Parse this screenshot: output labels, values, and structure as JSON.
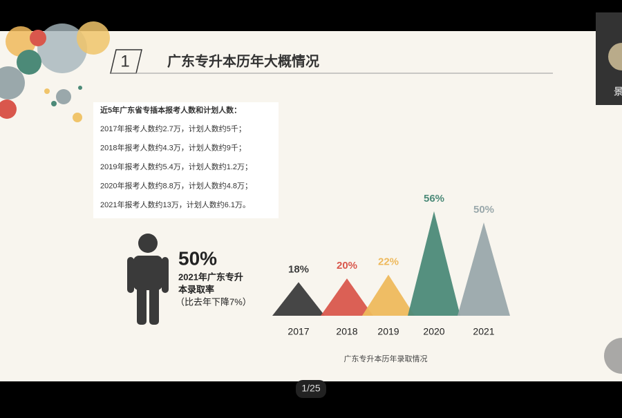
{
  "slide": {
    "number": "1",
    "title": "广东专升本历年大概情况",
    "info": {
      "heading": "近5年广东省专插本报考人数和计划人数：",
      "lines": [
        "2017年报考人数约2.7万，计划人数约5千；",
        "2018年报考人数约4.3万，计划人数约9千；",
        "2019年报考人数约5.4万，计划人数约1.2万；",
        "2020年报考人数约8.8万，计划人数约4.8万；",
        "2021年报考人数约13万，计划人数约6.1万。"
      ]
    },
    "stat": {
      "value": "50%",
      "caption": [
        "2021年广东专升",
        "本录取率",
        "（比去年下降7%）"
      ]
    },
    "chart": {
      "type": "triangle",
      "caption": "广东专升本历年录取情况",
      "categories": [
        "2017",
        "2018",
        "2019",
        "2020",
        "2021"
      ],
      "values": [
        18,
        20,
        22,
        56,
        50
      ],
      "value_labels": [
        "18%",
        "20%",
        "22%",
        "56%",
        "50%"
      ],
      "colors": [
        "#3c3c3c",
        "#d9574c",
        "#eeb95c",
        "#4c8a78",
        "#9aa8ab"
      ]
    }
  },
  "player": {
    "page_indicator": "1/25",
    "participant": "景"
  }
}
